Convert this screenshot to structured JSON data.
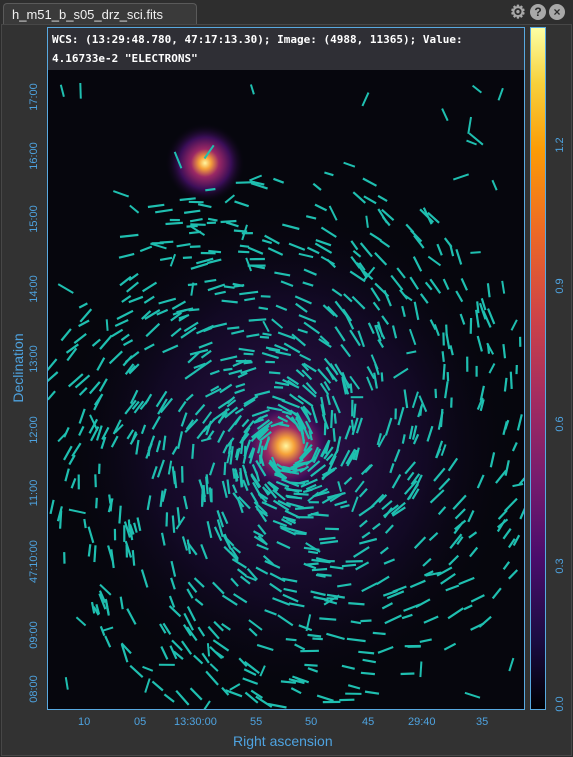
{
  "tab": {
    "title": "h_m51_b_s05_drz_sci.fits"
  },
  "icons": {
    "settings": "gear-icon",
    "help": "help-icon",
    "close": "close-icon"
  },
  "readout": {
    "line1": "WCS: (13:29:48.780, 47:17:13.30); Image: (4988, 11365); Value:",
    "line2": "4.16733e-2 \"ELECTRONS\""
  },
  "axes": {
    "xlabel": "Right ascension",
    "ylabel": "Declination",
    "x_ticks": [
      "10",
      "05",
      "13:30:00",
      "55",
      "50",
      "45",
      "29:40",
      "35"
    ],
    "y_ticks": [
      "17:00",
      "16:00",
      "15:00",
      "14:00",
      "13:00",
      "12:00",
      "11:00",
      "47:10:00",
      "09:00",
      "08:00"
    ]
  },
  "colorbar": {
    "ticks": [
      "1.2",
      "0.9",
      "0.6",
      "0.3",
      "0.0"
    ]
  },
  "colors": {
    "accent": "#4ea3e0",
    "vector": "#1fbfb0"
  }
}
